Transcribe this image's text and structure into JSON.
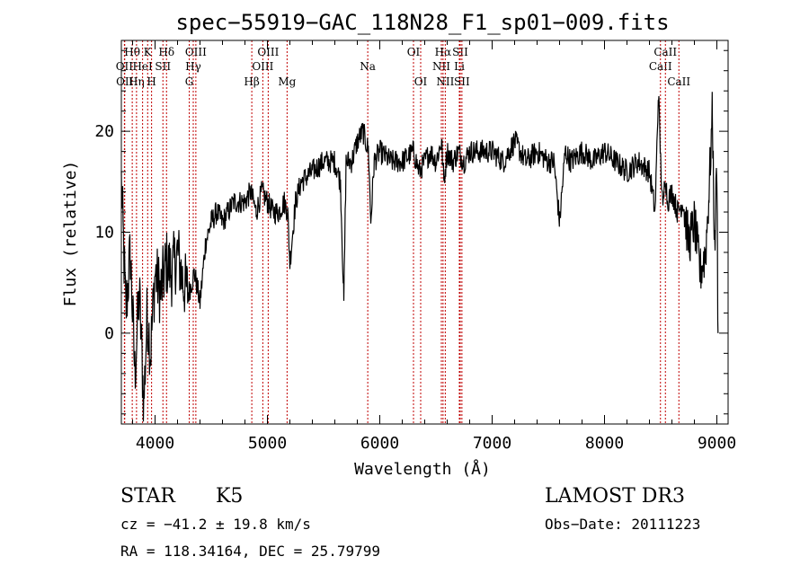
{
  "chart_data": {
    "type": "line",
    "title": "spec−55919−GAC_118N28_F1_sp01−009.fits",
    "xlabel": "Wavelength (Å)",
    "ylabel": "Flux (relative)",
    "xlim": [
      3700,
      9100
    ],
    "ylim": [
      -9,
      29
    ],
    "xticks": [
      4000,
      5000,
      6000,
      7000,
      8000,
      9000
    ],
    "yticks": [
      0,
      10,
      20
    ],
    "spectrum": {
      "x": [
        3700,
        3740,
        3780,
        3820,
        3860,
        3900,
        3930,
        3960,
        4000,
        4050,
        4100,
        4150,
        4200,
        4250,
        4300,
        4350,
        4400,
        4450,
        4500,
        4550,
        4600,
        4700,
        4800,
        4850,
        4900,
        4950,
        5000,
        5050,
        5100,
        5150,
        5180,
        5200,
        5250,
        5300,
        5400,
        5500,
        5600,
        5650,
        5680,
        5700,
        5750,
        5800,
        5850,
        5900,
        5920,
        5950,
        6000,
        6100,
        6200,
        6300,
        6350,
        6400,
        6450,
        6500,
        6550,
        6570,
        6600,
        6650,
        6700,
        6750,
        6800,
        6900,
        7000,
        7100,
        7200,
        7300,
        7400,
        7500,
        7550,
        7600,
        7650,
        7700,
        7800,
        7900,
        8000,
        8100,
        8200,
        8300,
        8400,
        8450,
        8480,
        8500,
        8520,
        8540,
        8560,
        8600,
        8650,
        8700,
        8750,
        8800,
        8850,
        8900,
        8930,
        8960,
        8980,
        9000,
        9010
      ],
      "y": [
        15,
        2,
        8,
        -4,
        4,
        -7,
        2,
        -2,
        6,
        4,
        7,
        6,
        8,
        5,
        4,
        6,
        3,
        9,
        11,
        12,
        11,
        13,
        13,
        14,
        12,
        14,
        13,
        12,
        12,
        13,
        12,
        7,
        13,
        15,
        16,
        17,
        17,
        15,
        3,
        17,
        17,
        19,
        20,
        18,
        11,
        17,
        18,
        17,
        17,
        18,
        16,
        17,
        18,
        17,
        19,
        15,
        18,
        17,
        18,
        17,
        18,
        18,
        18,
        17,
        19,
        17,
        18,
        17,
        17,
        11,
        18,
        17,
        18,
        17,
        18,
        17,
        16,
        17,
        16,
        12,
        24,
        17,
        12,
        16,
        13,
        14,
        12,
        13,
        9,
        11,
        6,
        8,
        14,
        22,
        8,
        17,
        0
      ]
    },
    "lines": [
      {
        "label": "Hθ",
        "x": 3797,
        "row": 1
      },
      {
        "label": "OII",
        "x": 3727,
        "row": 2
      },
      {
        "label": "OII",
        "x": 3730,
        "row": 3
      },
      {
        "label": "Hη",
        "x": 3835,
        "row": 3
      },
      {
        "label": "HeI",
        "x": 3889,
        "row": 2
      },
      {
        "label": "K",
        "x": 3934,
        "row": 1
      },
      {
        "label": "H",
        "x": 3969,
        "row": 3
      },
      {
        "label": "SII",
        "x": 4070,
        "row": 2
      },
      {
        "label": "Hδ",
        "x": 4102,
        "row": 1
      },
      {
        "label": "G",
        "x": 4304,
        "row": 3
      },
      {
        "label": "OIII",
        "x": 4363,
        "row": 1
      },
      {
        "label": "Hγ",
        "x": 4340,
        "row": 2
      },
      {
        "label": "Hβ",
        "x": 4861,
        "row": 3
      },
      {
        "label": "OIII",
        "x": 4959,
        "row": 2
      },
      {
        "label": "OIII",
        "x": 5007,
        "row": 1
      },
      {
        "label": "Mg",
        "x": 5175,
        "row": 3
      },
      {
        "label": "Na",
        "x": 5893,
        "row": 2
      },
      {
        "label": "OI",
        "x": 6300,
        "row": 1
      },
      {
        "label": "OI",
        "x": 6364,
        "row": 3
      },
      {
        "label": "NII",
        "x": 6548,
        "row": 2
      },
      {
        "label": "Hα",
        "x": 6563,
        "row": 1
      },
      {
        "label": "NII",
        "x": 6583,
        "row": 3
      },
      {
        "label": "SII",
        "x": 6716,
        "row": 1
      },
      {
        "label": "Li",
        "x": 6708,
        "row": 2
      },
      {
        "label": "SII",
        "x": 6731,
        "row": 3
      },
      {
        "label": "CaII",
        "x": 8498,
        "row": 2
      },
      {
        "label": "CaII",
        "x": 8542,
        "row": 1
      },
      {
        "label": "CaII",
        "x": 8662,
        "row": 3
      }
    ]
  },
  "info": {
    "class": "STAR",
    "subclass": "K5",
    "survey": "LAMOST DR3",
    "cz": "cz = −41.2 ± 19.8 km/s",
    "obs_date": "Obs−Date: 20111223",
    "radec": "RA = 118.34164, DEC =  25.79799"
  }
}
